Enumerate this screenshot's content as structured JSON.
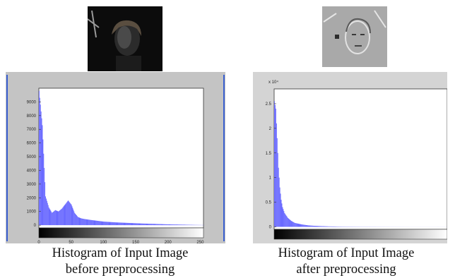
{
  "chart_data": [
    {
      "type": "bar",
      "title": "",
      "xlabel": "",
      "ylabel": "",
      "caption": [
        "Histogram of Input Image",
        "before preprocessing"
      ],
      "xlim": [
        0,
        255
      ],
      "ylim": [
        -200,
        10000
      ],
      "x_ticks": [
        "0",
        "50",
        "100",
        "150",
        "200",
        "250"
      ],
      "y_ticks": [
        "0",
        "1000",
        "2000",
        "3000",
        "4000",
        "5000",
        "6000",
        "7000",
        "8000",
        "9000"
      ],
      "grid": false,
      "bar_color": "#5a5aff",
      "x": [
        0,
        5,
        10,
        15,
        20,
        25,
        30,
        35,
        40,
        45,
        50,
        55,
        60,
        65,
        70,
        80,
        90,
        100,
        120,
        140,
        160,
        180,
        200,
        220,
        240,
        255
      ],
      "values": [
        9800,
        7300,
        2100,
        1300,
        900,
        1100,
        1000,
        1200,
        1500,
        1800,
        1500,
        900,
        600,
        500,
        450,
        380,
        320,
        260,
        200,
        160,
        120,
        90,
        60,
        40,
        20,
        10
      ]
    },
    {
      "type": "bar",
      "title": "",
      "xlabel": "",
      "ylabel": "",
      "y_scale_label": "x 10⁴",
      "caption": [
        "Histogram of Input Image",
        "after preprocessing"
      ],
      "xlim": [
        0,
        255
      ],
      "ylim": [
        -0.05,
        2.8
      ],
      "x_ticks": [],
      "y_ticks": [
        "0",
        "0.5",
        "1",
        "1.5",
        "2",
        "2.5"
      ],
      "grid": false,
      "bar_color": "#5a5aff",
      "x": [
        0,
        2,
        4,
        6,
        8,
        10,
        12,
        15,
        20,
        25,
        30,
        40,
        50,
        60,
        80,
        100,
        130,
        160,
        200,
        255
      ],
      "values": [
        2.55,
        2.4,
        1.8,
        1.2,
        0.8,
        0.55,
        0.4,
        0.28,
        0.18,
        0.12,
        0.08,
        0.05,
        0.03,
        0.02,
        0.01,
        0.005,
        0.003,
        0.002,
        0.001,
        0.001
      ]
    }
  ]
}
